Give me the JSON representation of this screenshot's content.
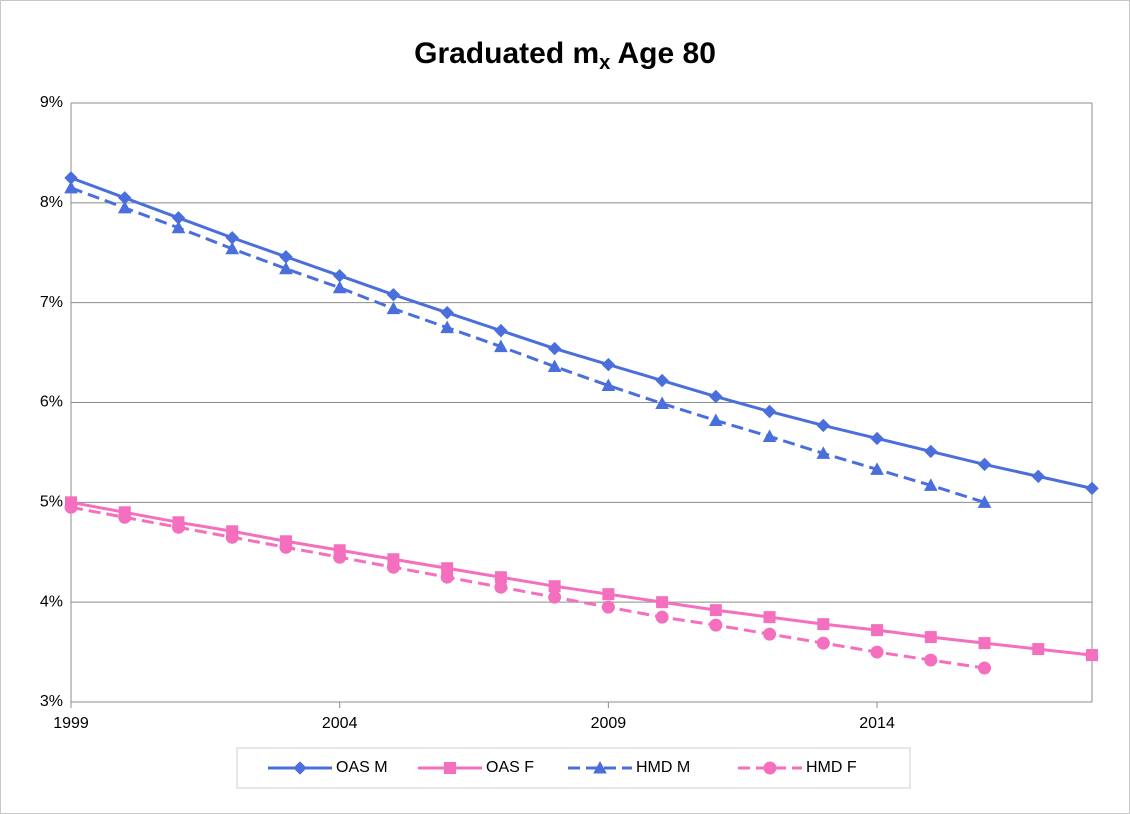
{
  "chart_data": {
    "type": "line",
    "title": [
      "Graduated m",
      "x",
      " Age 80"
    ],
    "x": [
      1999,
      2000,
      2001,
      2002,
      2003,
      2004,
      2005,
      2006,
      2007,
      2008,
      2009,
      2010,
      2011,
      2012,
      2013,
      2014,
      2015,
      2016,
      2017,
      2018
    ],
    "xlim": [
      1999,
      2018
    ],
    "xticks": [
      1999,
      2004,
      2009,
      2014
    ],
    "ylim": [
      3,
      9
    ],
    "yticks": [
      {
        "value": 3,
        "label": "3%"
      },
      {
        "value": 4,
        "label": "4%"
      },
      {
        "value": 5,
        "label": "5%"
      },
      {
        "value": 6,
        "label": "6%"
      },
      {
        "value": 7,
        "label": "7%"
      },
      {
        "value": 8,
        "label": "8%"
      },
      {
        "value": 9,
        "label": "9%"
      }
    ],
    "grid": true,
    "legend": "bottom",
    "series": [
      {
        "name": "OAS M",
        "color": "#4a6fdc",
        "marker": "diamond",
        "dashed": false,
        "values": [
          8.25,
          8.05,
          7.85,
          7.65,
          7.46,
          7.27,
          7.08,
          6.9,
          6.72,
          6.54,
          6.38,
          6.22,
          6.06,
          5.91,
          5.77,
          5.64,
          5.51,
          5.38,
          5.26,
          5.14
        ]
      },
      {
        "name": "OAS F",
        "color": "#f46fbd",
        "marker": "square",
        "dashed": false,
        "values": [
          5.0,
          4.9,
          4.8,
          4.71,
          4.61,
          4.52,
          4.43,
          4.34,
          4.25,
          4.16,
          4.08,
          4.0,
          3.92,
          3.85,
          3.78,
          3.72,
          3.65,
          3.59,
          3.53,
          3.47
        ]
      },
      {
        "name": "HMD M",
        "color": "#4a6fdc",
        "marker": "triangle",
        "dashed": true,
        "values": [
          8.15,
          7.95,
          7.75,
          7.54,
          7.34,
          7.15,
          6.94,
          6.75,
          6.56,
          6.36,
          6.17,
          5.99,
          5.82,
          5.66,
          5.49,
          5.33,
          5.17,
          5.0,
          null,
          null
        ]
      },
      {
        "name": "HMD F",
        "color": "#f46fbd",
        "marker": "circle",
        "dashed": true,
        "values": [
          4.95,
          4.85,
          4.75,
          4.65,
          4.55,
          4.45,
          4.35,
          4.25,
          4.15,
          4.05,
          3.95,
          3.85,
          3.77,
          3.68,
          3.59,
          3.5,
          3.42,
          3.34,
          null,
          null
        ]
      }
    ]
  }
}
